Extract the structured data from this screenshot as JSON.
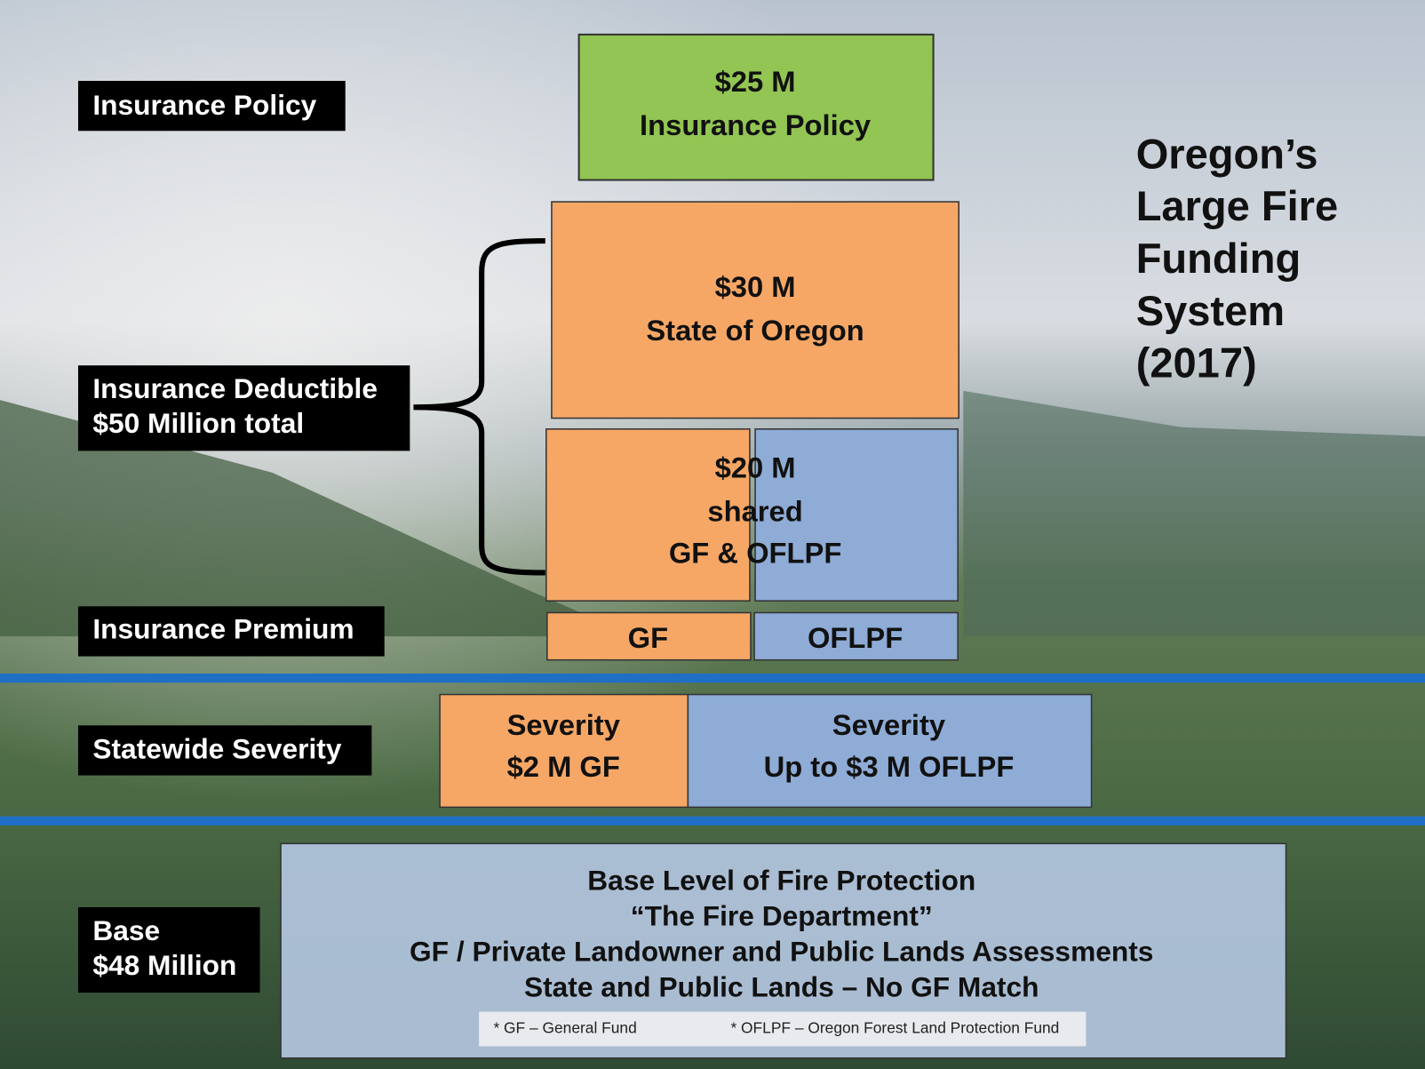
{
  "title": {
    "lines": [
      "Oregon’s",
      "Large Fire",
      "Funding",
      "System",
      "(2017)"
    ]
  },
  "levels": [
    {
      "lines": [
        "Insurance Policy"
      ]
    },
    {
      "lines": [
        "Insurance Deductible",
        "$50 Million total"
      ]
    },
    {
      "lines": [
        "Insurance Premium"
      ]
    },
    {
      "lines": [
        "Statewide Severity"
      ]
    },
    {
      "lines": [
        "Base",
        "$48 Million"
      ]
    }
  ],
  "boxes": {
    "insurance_policy": {
      "lines": [
        "$25 M",
        "Insurance Policy"
      ]
    },
    "state": {
      "lines": [
        "$30 M",
        "State of Oregon"
      ]
    },
    "shared": {
      "lines": [
        "$20 M",
        "shared",
        "GF & OFLPF"
      ]
    },
    "premium_gf": {
      "lines": [
        "GF"
      ]
    },
    "premium_oflpf": {
      "lines": [
        "OFLPF"
      ]
    },
    "severity_gf": {
      "lines": [
        "Severity",
        "$2 M GF"
      ]
    },
    "severity_oflpf": {
      "lines": [
        "Severity",
        "Up to $3 M OFLPF"
      ]
    },
    "base": {
      "lines": [
        "Base Level of  Fire Protection",
        "“The Fire Department”",
        "GF / Private Landowner and Public Lands Assessments",
        "State and Public Lands – No GF Match"
      ]
    }
  },
  "footnotes": [
    "* GF – General Fund",
    "* OFLPF – Oregon Forest Land Protection Fund"
  ]
}
